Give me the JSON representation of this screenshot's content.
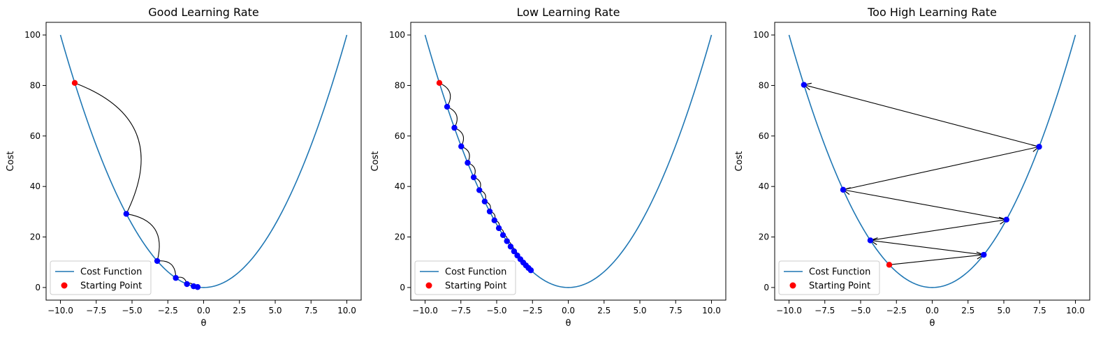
{
  "colors": {
    "cost_curve": "#1f77b4",
    "start_point": "#ff0000",
    "step_point": "#0000ff",
    "arrow": "#000000",
    "axes": "#000000",
    "legend_border": "#cccccc"
  },
  "chart_data": [
    {
      "type": "line",
      "title": "Good Learning Rate",
      "xlabel": "θ",
      "ylabel": "Cost",
      "xlim": [
        -11,
        11
      ],
      "ylim": [
        -5,
        105
      ],
      "xticks": [
        -10.0,
        -7.5,
        -5.0,
        -2.5,
        0.0,
        2.5,
        5.0,
        7.5,
        10.0
      ],
      "xtick_labels": [
        "−10.0",
        "−7.5",
        "−5.0",
        "−2.5",
        "0.0",
        "2.5",
        "5.0",
        "7.5",
        "10.0"
      ],
      "yticks": [
        0,
        20,
        40,
        60,
        80,
        100
      ],
      "ytick_labels": [
        "0",
        "20",
        "40",
        "60",
        "80",
        "100"
      ],
      "grid": false,
      "legend": {
        "placement": "lower-left",
        "entries": [
          "Cost Function",
          "Starting Point"
        ]
      },
      "cost_function": {
        "formula": "θ^2",
        "x_range": [
          -10,
          10
        ]
      },
      "points": [
        {
          "x": -9.0,
          "y": 81.0
        },
        {
          "x": -5.4,
          "y": 29.16
        },
        {
          "x": -3.24,
          "y": 10.5
        },
        {
          "x": -1.944,
          "y": 3.78
        },
        {
          "x": -1.166,
          "y": 1.36
        },
        {
          "x": -0.7,
          "y": 0.49
        },
        {
          "x": -0.42,
          "y": 0.18
        }
      ],
      "connector": "arc"
    },
    {
      "type": "line",
      "title": "Low Learning Rate",
      "xlabel": "θ",
      "ylabel": "Cost",
      "xlim": [
        -11,
        11
      ],
      "ylim": [
        -5,
        105
      ],
      "xticks": [
        -10.0,
        -7.5,
        -5.0,
        -2.5,
        0.0,
        2.5,
        5.0,
        7.5,
        10.0
      ],
      "xtick_labels": [
        "−10.0",
        "−7.5",
        "−5.0",
        "−2.5",
        "0.0",
        "2.5",
        "5.0",
        "7.5",
        "10.0"
      ],
      "yticks": [
        0,
        20,
        40,
        60,
        80,
        100
      ],
      "ytick_labels": [
        "0",
        "20",
        "40",
        "60",
        "80",
        "100"
      ],
      "grid": false,
      "legend": {
        "placement": "lower-left",
        "entries": [
          "Cost Function",
          "Starting Point"
        ]
      },
      "cost_function": {
        "formula": "θ^2",
        "x_range": [
          -10,
          10
        ]
      },
      "points": [
        {
          "x": -9.0,
          "y": 81.0
        },
        {
          "x": -8.46,
          "y": 71.57
        },
        {
          "x": -7.952,
          "y": 63.24
        },
        {
          "x": -7.475,
          "y": 55.88
        },
        {
          "x": -7.027,
          "y": 49.38
        },
        {
          "x": -6.605,
          "y": 43.63
        },
        {
          "x": -6.209,
          "y": 38.55
        },
        {
          "x": -5.836,
          "y": 34.06
        },
        {
          "x": -5.486,
          "y": 30.1
        },
        {
          "x": -5.157,
          "y": 26.59
        },
        {
          "x": -4.848,
          "y": 23.5
        },
        {
          "x": -4.557,
          "y": 20.76
        },
        {
          "x": -4.283,
          "y": 18.35
        },
        {
          "x": -4.026,
          "y": 16.21
        },
        {
          "x": -3.785,
          "y": 14.32
        },
        {
          "x": -3.558,
          "y": 12.66
        },
        {
          "x": -3.344,
          "y": 11.18
        },
        {
          "x": -3.144,
          "y": 9.88
        },
        {
          "x": -2.955,
          "y": 8.73
        },
        {
          "x": -2.778,
          "y": 7.72
        },
        {
          "x": -2.611,
          "y": 6.82
        }
      ],
      "connector": "arc"
    },
    {
      "type": "line",
      "title": "Too High Learning Rate",
      "xlabel": "θ",
      "ylabel": "Cost",
      "xlim": [
        -11,
        11
      ],
      "ylim": [
        -5,
        105
      ],
      "xticks": [
        -10.0,
        -7.5,
        -5.0,
        -2.5,
        0.0,
        2.5,
        5.0,
        7.5,
        10.0
      ],
      "xtick_labels": [
        "−10.0",
        "−7.5",
        "−5.0",
        "−2.5",
        "0.0",
        "2.5",
        "5.0",
        "7.5",
        "10.0"
      ],
      "yticks": [
        0,
        20,
        40,
        60,
        80,
        100
      ],
      "ytick_labels": [
        "0",
        "20",
        "40",
        "60",
        "80",
        "100"
      ],
      "grid": false,
      "legend": {
        "placement": "lower-left",
        "entries": [
          "Cost Function",
          "Starting Point"
        ]
      },
      "cost_function": {
        "formula": "θ^2",
        "x_range": [
          -10,
          10
        ]
      },
      "points": [
        {
          "x": -3.0,
          "y": 9.0
        },
        {
          "x": 3.6,
          "y": 12.96
        },
        {
          "x": -4.32,
          "y": 18.66
        },
        {
          "x": 5.184,
          "y": 26.87
        },
        {
          "x": -6.221,
          "y": 38.7
        },
        {
          "x": 7.465,
          "y": 55.73
        },
        {
          "x": -8.958,
          "y": 80.25
        }
      ],
      "connector": "arrow"
    }
  ]
}
